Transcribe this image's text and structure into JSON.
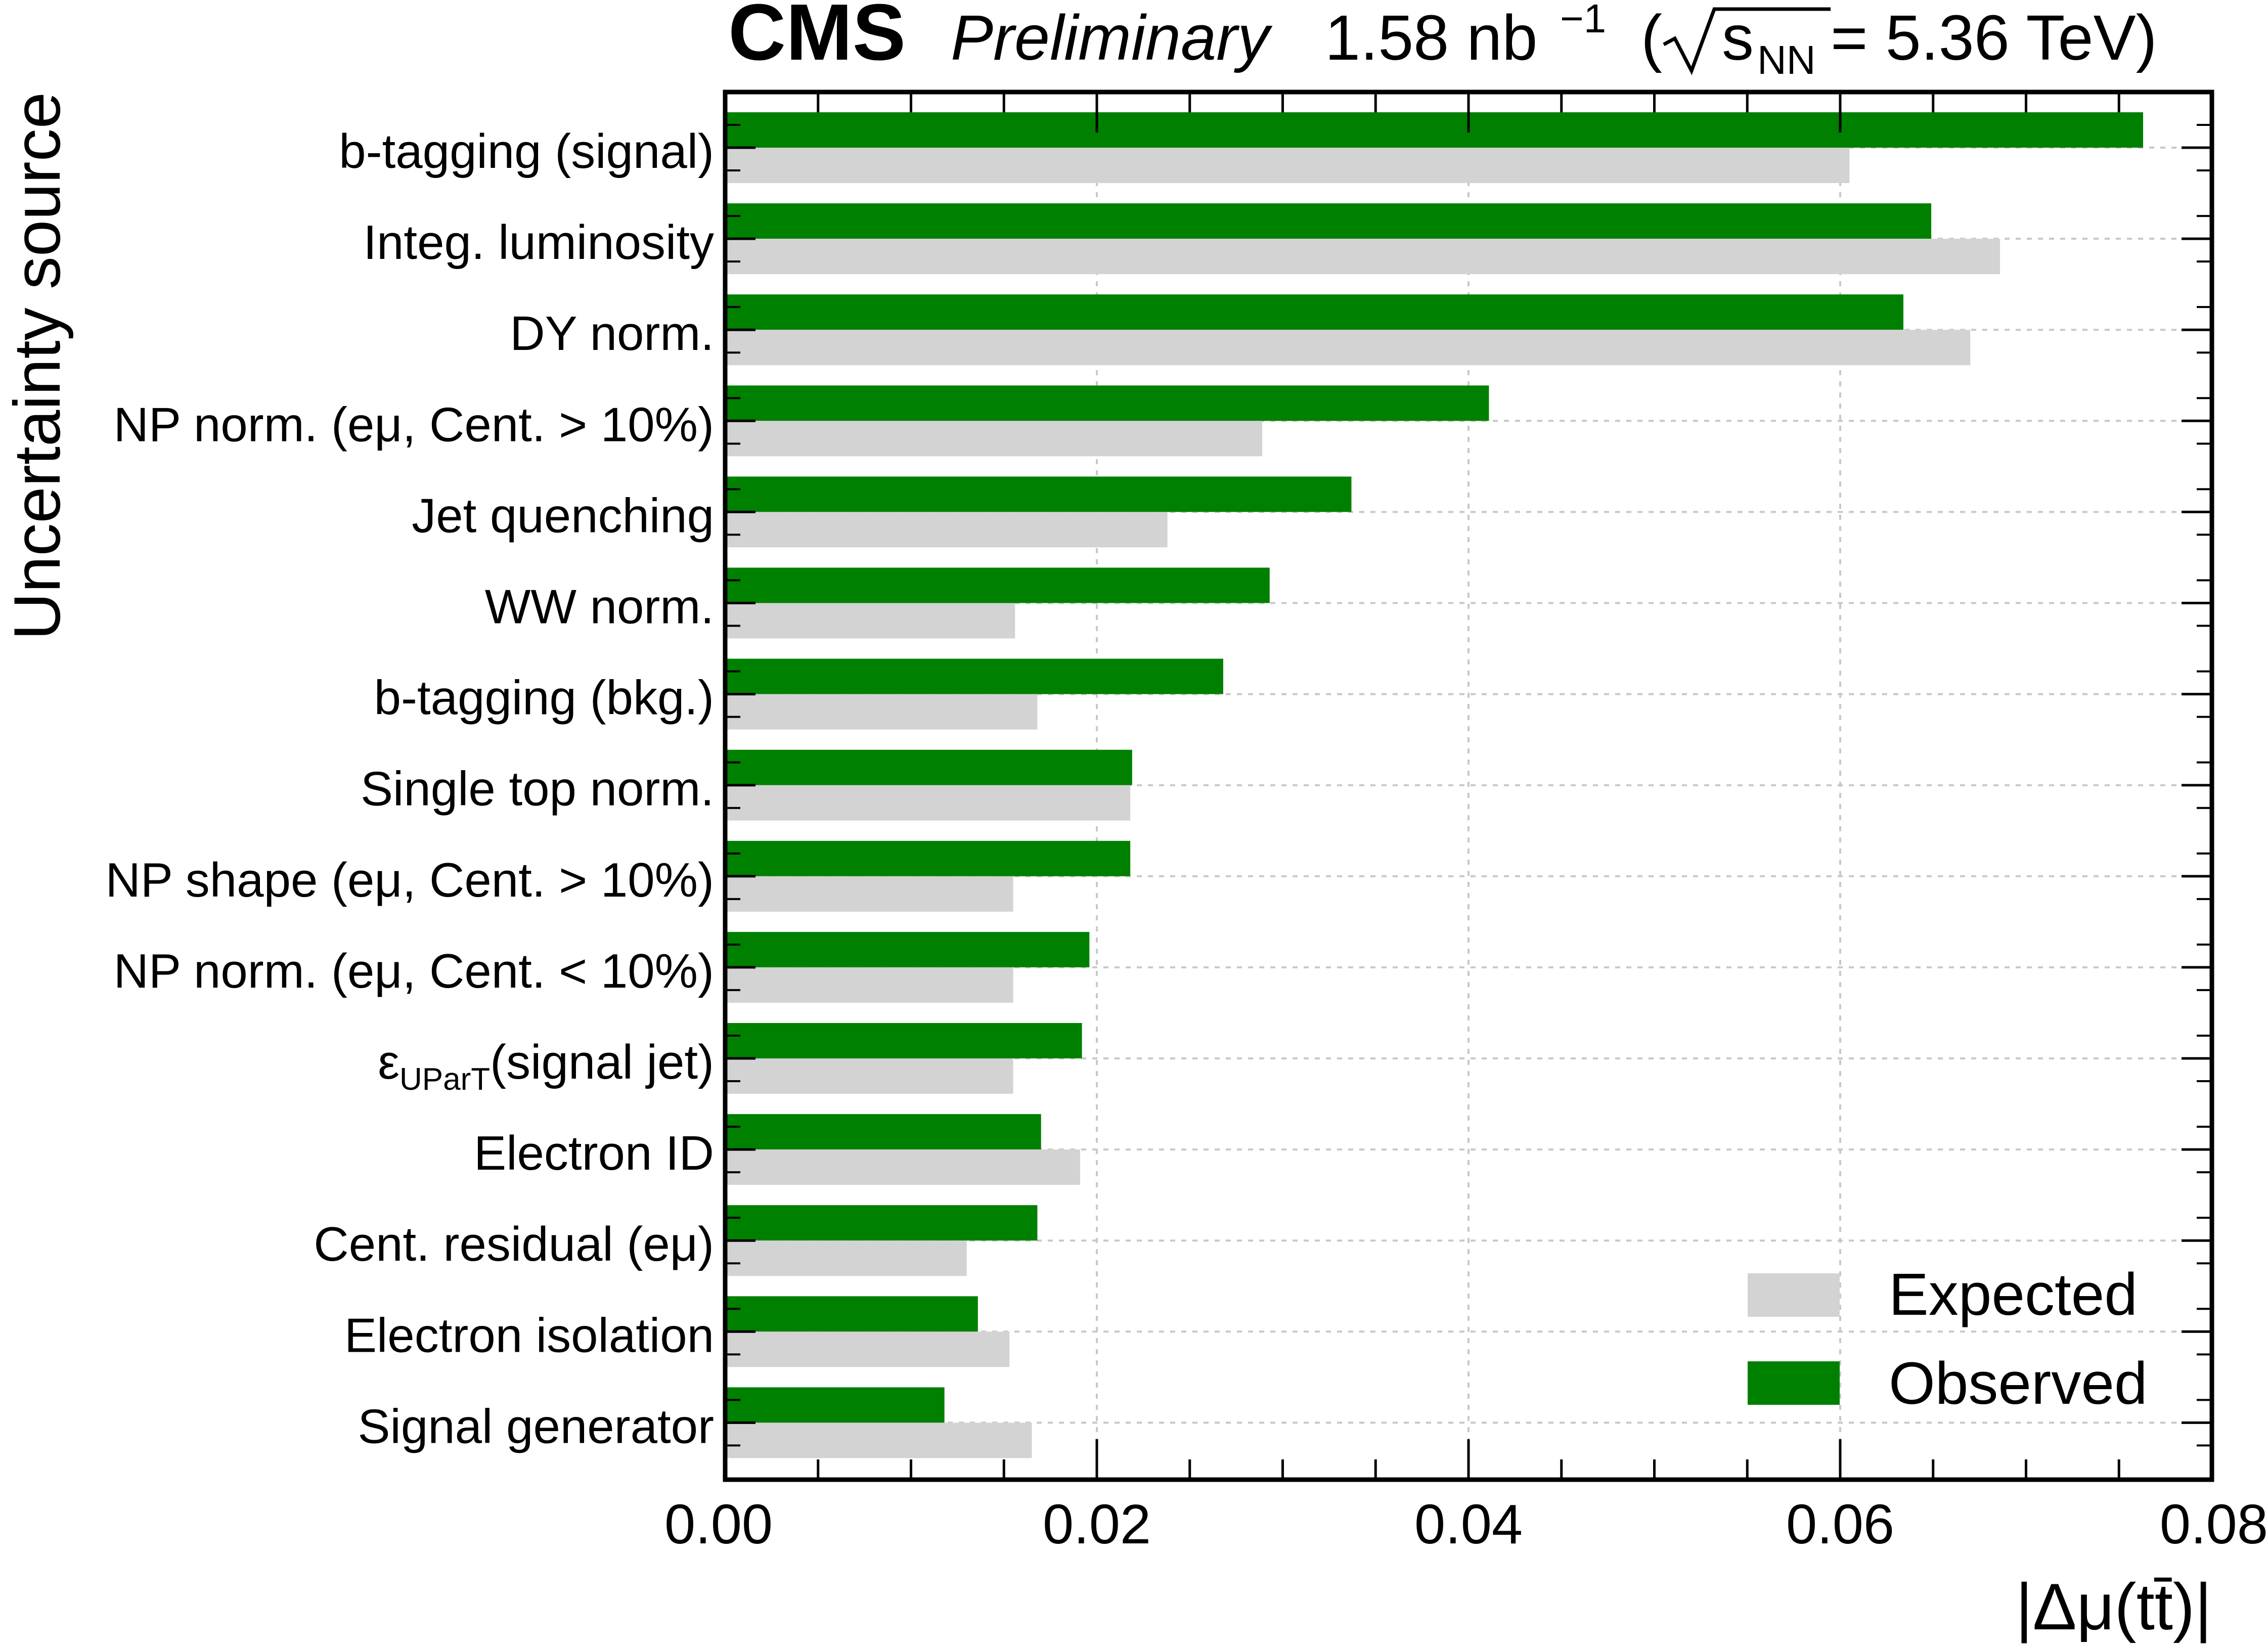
{
  "header": {
    "experiment": "CMS",
    "status": "Preliminary",
    "lumi": "1.58 nb",
    "lumi_exp": "−1",
    "energy_open": "(",
    "energy_sub": "NN",
    "energy_rest": " = 5.36 TeV)"
  },
  "legend": {
    "expected": "Expected",
    "observed": "Observed",
    "placement": "lower-right"
  },
  "colors": {
    "expected": "#d3d3d3",
    "observed": "#008000",
    "grid": "#c8c8c8"
  },
  "chart_data": {
    "type": "bar",
    "orientation": "horizontal",
    "title": "",
    "xlabel": "|Δμ(tt̄)|",
    "ylabel": "Uncertainty source",
    "xlim": [
      0.0,
      0.08
    ],
    "xticks": [
      "0.00",
      "0.02",
      "0.04",
      "0.06",
      "0.08"
    ],
    "grid": true,
    "categories": [
      "b-tagging (signal)",
      "Integ. luminosity",
      "DY norm.",
      "NP norm. (eμ, Cent. > 10%)",
      "Jet quenching",
      "WW norm.",
      "b-tagging (bkg.)",
      "Single top norm.",
      "NP shape (eμ, Cent. > 10%)",
      "NP norm. (eμ, Cent. < 10%)",
      "εUParT(signal jet)",
      "Electron ID",
      "Cent. residual (eμ)",
      "Electron isolation",
      "Signal generator"
    ],
    "series": [
      {
        "name": "Observed",
        "values": [
          0.0763,
          0.0649,
          0.0634,
          0.0411,
          0.0337,
          0.0293,
          0.0268,
          0.0219,
          0.0218,
          0.0196,
          0.0192,
          0.017,
          0.0168,
          0.0136,
          0.0118
        ]
      },
      {
        "name": "Expected",
        "values": [
          0.0605,
          0.0686,
          0.067,
          0.0289,
          0.0238,
          0.0156,
          0.0168,
          0.0218,
          0.0155,
          0.0155,
          0.0155,
          0.0191,
          0.013,
          0.0153,
          0.0165
        ]
      }
    ]
  }
}
